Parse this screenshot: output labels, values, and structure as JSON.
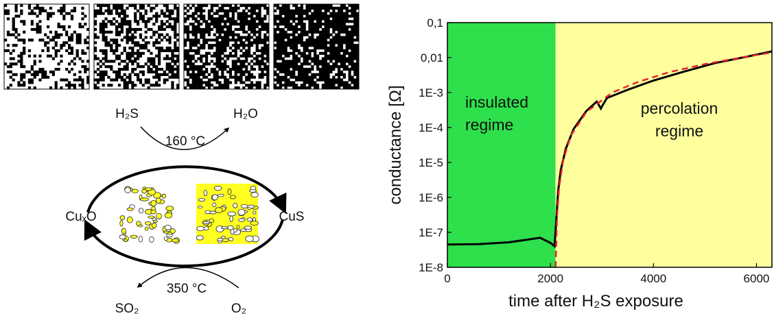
{
  "diagram": {
    "top_reaction": {
      "reactant": "H₂S",
      "product": "H₂O",
      "temperature": "160 °C"
    },
    "bottom_reaction": {
      "reactant": "O₂",
      "product": "SO₂",
      "temperature": "350 °C"
    },
    "left_species": "CuₓO",
    "right_species": "CuS"
  },
  "chart_data": {
    "type": "line",
    "xlabel": "time after H₂S exposure",
    "ylabel": "conductance [Ω]",
    "xlim": [
      0,
      6300
    ],
    "xticks": [
      0,
      2000,
      4000,
      6000
    ],
    "ylim": [
      1e-08,
      0.1
    ],
    "yscale": "log",
    "yticks": [
      {
        "value": 0.1,
        "label": "0,1"
      },
      {
        "value": 0.01,
        "label": "0,01"
      },
      {
        "value": 0.001,
        "label": "1E-3"
      },
      {
        "value": 0.0001,
        "label": "1E-4"
      },
      {
        "value": 1e-05,
        "label": "1E-5"
      },
      {
        "value": 1e-06,
        "label": "1E-6"
      },
      {
        "value": 1e-07,
        "label": "1E-7"
      },
      {
        "value": 1e-08,
        "label": "1E-8"
      }
    ],
    "regions": [
      {
        "lines": [
          "insulated",
          "regime"
        ],
        "xlim": [
          0,
          2100
        ],
        "color": "#2ee04c"
      },
      {
        "lines": [
          "percolation",
          "regime"
        ],
        "xlim": [
          2100,
          6300
        ],
        "color": "#ffff9e"
      }
    ],
    "series": [
      {
        "color": "#000000",
        "dash": false,
        "x": [
          0,
          600,
          1200,
          1800,
          2000,
          2080,
          2120,
          2150,
          2200,
          2300,
          2450,
          2700,
          2900,
          2980,
          3020,
          3100,
          3500,
          4000,
          4600,
          5200,
          5800,
          6300
        ],
        "values": [
          4.5e-08,
          4.6e-08,
          5.2e-08,
          7e-08,
          5e-08,
          4e-08,
          3e-07,
          1.5e-06,
          6e-06,
          2.5e-05,
          9e-05,
          0.0003,
          0.00055,
          0.00035,
          0.00045,
          0.0007,
          0.0012,
          0.0022,
          0.004,
          0.007,
          0.0105,
          0.015
        ]
      },
      {
        "color": "#e8222a",
        "dash": true,
        "x": [
          2100,
          2130,
          2170,
          2250,
          2400,
          2700,
          3200,
          3700,
          4300,
          5000,
          5700,
          6300
        ],
        "values": [
          1e-08,
          3e-07,
          2e-06,
          1.2e-05,
          6e-05,
          0.00028,
          0.001,
          0.002,
          0.0038,
          0.0065,
          0.01,
          0.014
        ]
      }
    ]
  }
}
